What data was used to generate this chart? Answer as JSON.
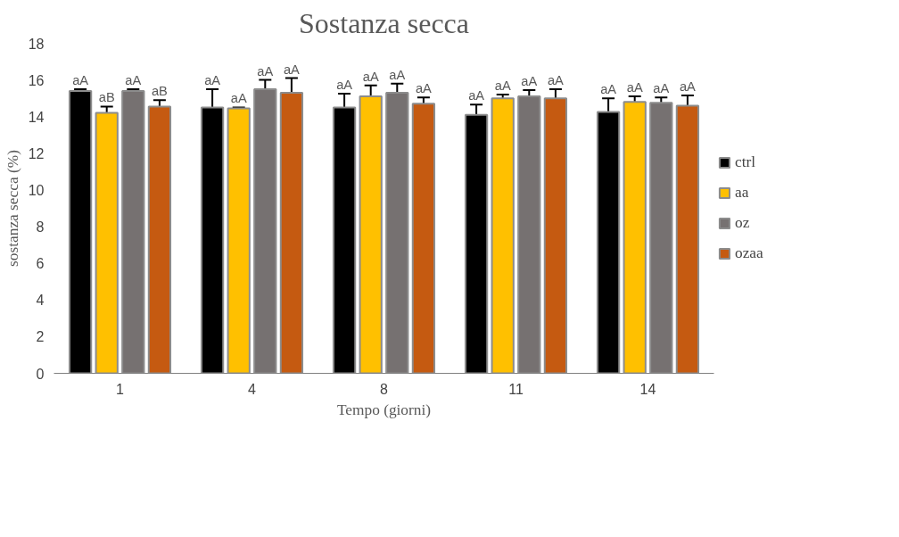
{
  "chart_data": {
    "type": "bar",
    "title": "Sostanza secca",
    "xlabel": "Tempo (giorni)",
    "ylabel": "sostanza secca (%)",
    "categories": [
      "1",
      "4",
      "8",
      "11",
      "14"
    ],
    "ylim": [
      0,
      18
    ],
    "yticks": [
      0,
      2,
      4,
      6,
      8,
      10,
      12,
      14,
      16,
      18
    ],
    "grid": false,
    "legend": "right",
    "series": [
      {
        "name": "ctrl",
        "color": "#000000",
        "values": [
          15.4,
          14.5,
          14.5,
          14.1,
          14.25
        ],
        "errors": [
          0.1,
          1.0,
          0.75,
          0.55,
          0.75
        ],
        "value_labels": [
          "aA",
          "aA",
          "aA",
          "aA",
          "aA"
        ]
      },
      {
        "name": "aa",
        "color": "#ffc000",
        "values": [
          14.2,
          14.45,
          15.1,
          15.0,
          14.8
        ],
        "errors": [
          0.35,
          0.05,
          0.6,
          0.2,
          0.3
        ],
        "value_labels": [
          "aB",
          "aA",
          "aA",
          "aA",
          "aA"
        ]
      },
      {
        "name": "oz",
        "color": "#767171",
        "values": [
          15.4,
          15.5,
          15.3,
          15.1,
          14.75
        ],
        "errors": [
          0.1,
          0.5,
          0.5,
          0.35,
          0.3
        ],
        "value_labels": [
          "aA",
          "aA",
          "aA",
          "aA",
          "aA"
        ]
      },
      {
        "name": "ozaa",
        "color": "#c55a11",
        "values": [
          14.55,
          15.3,
          14.7,
          15.0,
          14.6
        ],
        "errors": [
          0.35,
          0.8,
          0.35,
          0.5,
          0.55
        ],
        "value_labels": [
          "aB",
          "aA",
          "aA",
          "aA",
          "aA"
        ]
      }
    ]
  }
}
